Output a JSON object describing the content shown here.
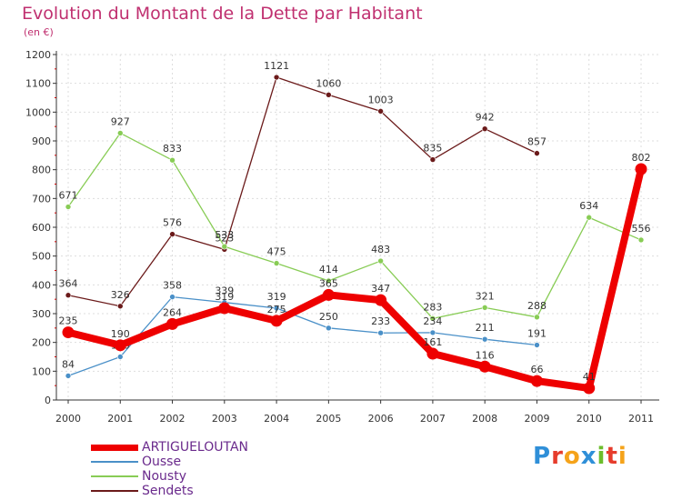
{
  "title": "Evolution du Montant de la Dette par Habitant",
  "subtitle": "(en €)",
  "logo": {
    "text": "Proxiti",
    "letters": [
      {
        "ch": "P",
        "color": "#2f8fd8"
      },
      {
        "ch": "r",
        "color": "#e63c2c"
      },
      {
        "ch": "o",
        "color": "#f5a31a"
      },
      {
        "ch": "x",
        "color": "#2f8fd8"
      },
      {
        "ch": "i",
        "color": "#6cbd2c"
      },
      {
        "ch": "t",
        "color": "#e63c2c"
      },
      {
        "ch": "i",
        "color": "#f5a31a"
      }
    ]
  },
  "chart_data": {
    "type": "line",
    "x": [
      "2000",
      "2001",
      "2002",
      "2003",
      "2004",
      "2005",
      "2006",
      "2007",
      "2008",
      "2009",
      "2010",
      "2011"
    ],
    "ylim": [
      0,
      1200
    ],
    "yticks": [
      "0",
      "100",
      "200",
      "300",
      "400",
      "500",
      "600",
      "700",
      "800",
      "900",
      "1000",
      "1100",
      "1200"
    ],
    "grid": true,
    "legend_position": "bottom-left",
    "series": [
      {
        "name": "ARTIGUELOUTAN",
        "color": "#ee0000",
        "emphasis": true,
        "values": [
          235,
          190,
          264,
          319,
          275,
          365,
          347,
          161,
          116,
          66,
          41,
          802
        ],
        "labels": [
          "235",
          "190",
          "264",
          "319",
          "275",
          "365",
          "347",
          "161",
          "116",
          "66",
          "41",
          "802"
        ]
      },
      {
        "name": "Ousse",
        "color": "#4a90c8",
        "values": [
          84,
          150,
          358,
          339,
          319,
          250,
          233,
          234,
          211,
          191,
          null,
          null
        ],
        "labels": [
          "84",
          "150",
          "358",
          "339",
          "319",
          "250",
          "233",
          "234",
          "211",
          "191",
          "",
          ""
        ]
      },
      {
        "name": "Nousty",
        "color": "#88cc55",
        "values": [
          671,
          927,
          833,
          533,
          475,
          414,
          483,
          283,
          321,
          288,
          634,
          556
        ],
        "labels": [
          "671",
          "927",
          "833",
          "533",
          "475",
          "414",
          "483",
          "283",
          "321",
          "288",
          "634",
          "556"
        ]
      },
      {
        "name": "Sendets",
        "color": "#6b1a1a",
        "values": [
          364,
          326,
          576,
          523,
          1121,
          1060,
          1003,
          835,
          942,
          857,
          null,
          null
        ],
        "labels": [
          "364",
          "326",
          "576",
          "523",
          "1121",
          "1060",
          "1003",
          "835",
          "942",
          "857",
          "",
          ""
        ]
      }
    ]
  }
}
